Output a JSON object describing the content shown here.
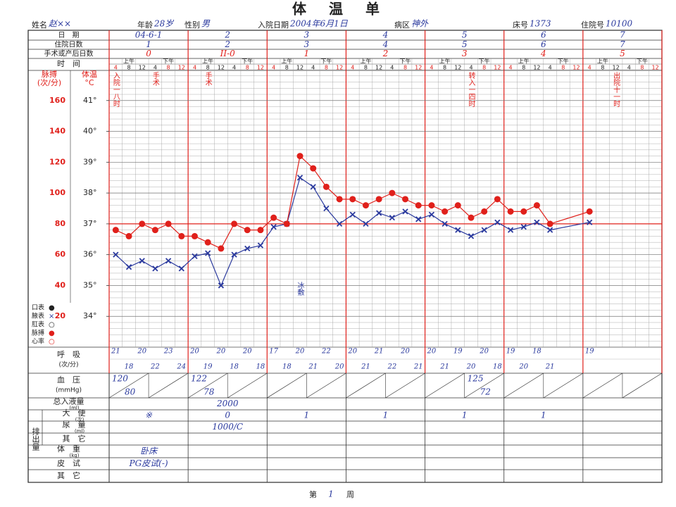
{
  "title": "体　温　单",
  "info": [
    {
      "label": "姓名",
      "value": "赵××"
    },
    {
      "label": "年龄",
      "value": "28岁"
    },
    {
      "label": "性别",
      "value": "男"
    },
    {
      "label": "入院日期",
      "value": "2004年6月1日"
    },
    {
      "label": "病区",
      "value": "神外"
    },
    {
      "label": "床号",
      "value": "1373"
    },
    {
      "label": "住院号",
      "value": "10100"
    }
  ],
  "day_rows": [
    {
      "label": "日　期",
      "values": [
        "04-6-1",
        "2",
        "3",
        "4",
        "5",
        "6",
        "7"
      ]
    },
    {
      "label": "住院日数",
      "values": [
        "1",
        "2",
        "3",
        "4",
        "5",
        "6",
        "7"
      ]
    },
    {
      "label": "手术或产后日数",
      "values": [
        "0",
        "II-0",
        "1",
        "2",
        "3",
        "4",
        "5"
      ]
    }
  ],
  "time_row": {
    "label": "时　间",
    "periods": [
      "上午",
      "下午"
    ]
  },
  "chart_data": {
    "type": "line",
    "ylabel": [
      "脉搏",
      "(次/分)"
    ],
    "y2label": [
      "体温",
      "°C"
    ],
    "categories": [
      4,
      8,
      12,
      4,
      8,
      12,
      4,
      8,
      12,
      4,
      8,
      12,
      4,
      8,
      12,
      4,
      8,
      12,
      4,
      8,
      12,
      4,
      8,
      12,
      4,
      8,
      12,
      4,
      8,
      12,
      4,
      8,
      12,
      4,
      8,
      12,
      4,
      8,
      12,
      4,
      8,
      12
    ],
    "x": [
      0,
      1,
      2,
      3,
      4,
      5,
      6,
      7,
      8,
      9,
      10,
      11,
      12,
      13,
      14,
      15,
      16,
      17,
      18,
      19,
      20,
      21,
      22,
      23,
      24,
      25,
      26,
      27,
      28,
      29,
      30,
      31,
      32,
      33,
      36
    ],
    "ylim": [
      0,
      180
    ],
    "yticks": [
      20,
      40,
      60,
      80,
      100,
      120,
      140,
      160
    ],
    "y2lim": [
      33,
      42
    ],
    "y2ticks": [
      {
        "value": 34,
        "label": "34°"
      },
      {
        "value": 35,
        "label": "35°"
      },
      {
        "value": 36,
        "label": "36°"
      },
      {
        "value": 37,
        "label": "37°"
      },
      {
        "value": 38,
        "label": "38°"
      },
      {
        "value": 39,
        "label": "39°"
      },
      {
        "value": 40,
        "label": "40°"
      },
      {
        "value": 41,
        "label": "41°"
      }
    ],
    "reference_line": {
      "value": 37,
      "axis": "y2",
      "color": "#e0201b"
    },
    "series": [
      {
        "name": "腋表",
        "symbol": "×",
        "color": "#2b3a9e",
        "axis": "y2",
        "values": [
          36.0,
          35.6,
          35.8,
          35.55,
          35.8,
          35.55,
          35.95,
          36.05,
          35.0,
          36.0,
          36.2,
          36.3,
          36.9,
          37.0,
          38.5,
          38.2,
          37.5,
          37.0,
          37.3,
          37.0,
          37.35,
          37.2,
          37.4,
          37.15,
          37.3,
          37.0,
          36.8,
          36.6,
          36.8,
          37.05,
          36.8,
          36.9,
          37.05,
          36.8,
          37.05
        ]
      },
      {
        "name": "脉搏",
        "symbol": "●",
        "color": "#e0201b",
        "values": [
          76,
          72,
          80,
          76,
          80,
          72,
          72,
          68,
          64,
          80,
          76,
          76,
          84,
          80,
          124,
          116,
          104,
          96,
          96,
          92,
          96,
          100,
          96,
          92,
          92,
          88,
          92,
          84,
          88,
          96,
          88,
          88,
          92,
          80,
          88
        ]
      }
    ],
    "legend_extra": [
      {
        "name": "口表",
        "symbol": "●",
        "color": "#222222"
      },
      {
        "name": "肛表",
        "symbol": "○",
        "color": "#222222"
      },
      {
        "name": "心率",
        "symbol": "○",
        "color": "#e0201b"
      }
    ],
    "annotations": [
      {
        "text": "入院一八时",
        "color": "#e0201b"
      },
      {
        "text": "手术",
        "color": "#e0201b"
      },
      {
        "text": "手术",
        "color": "#e0201b"
      },
      {
        "text": "转入一四时",
        "color": "#e0201b"
      },
      {
        "text": "出院十一时",
        "color": "#e0201b"
      },
      {
        "text": "冰敷",
        "color": "#2b3a9e"
      }
    ]
  },
  "respiration": {
    "label": "呼　吸",
    "unit": "(次/分)",
    "values": [
      21,
      18,
      20,
      22,
      23,
      24,
      20,
      19,
      20,
      18,
      20,
      18,
      17,
      18,
      20,
      21,
      22,
      20,
      20,
      21,
      21,
      22,
      20,
      21,
      20,
      21,
      19,
      20,
      20,
      18,
      19,
      20,
      18,
      21,
      null,
      null,
      19,
      null,
      null,
      null,
      null,
      null
    ]
  },
  "blood_pressure": {
    "label": "血　压",
    "unit": "(mmHg)",
    "values": [
      [
        120,
        80
      ],
      null,
      [
        122,
        78
      ],
      null,
      null,
      null,
      null,
      null,
      null,
      [
        125,
        72
      ],
      null,
      null,
      null,
      null
    ]
  },
  "intake": {
    "label": "总入液量",
    "unit": "(ml)",
    "values": [
      null,
      "2000",
      null,
      null,
      null,
      null,
      null
    ]
  },
  "output": {
    "label": "排出量",
    "rows": [
      {
        "label": "大　便",
        "unit": "(次)",
        "values": [
          "※",
          "0",
          "1",
          "1",
          "1",
          "1",
          null
        ]
      },
      {
        "label": "尿　量",
        "unit": "(ml)",
        "values": [
          null,
          "1000/C",
          null,
          null,
          null,
          null,
          null
        ]
      },
      {
        "label": "其　它"
      }
    ]
  },
  "weight": {
    "label": "体　重",
    "unit": "(kg)",
    "values": [
      "卧床",
      null,
      null,
      null,
      null,
      null,
      null
    ]
  },
  "skin_test": {
    "label": "皮　试",
    "values": [
      "PG皮试(-)",
      null,
      null,
      null,
      null,
      null,
      null
    ]
  },
  "other": {
    "label": "其　它"
  },
  "footer": {
    "prefix": "第",
    "week": "1",
    "suffix": "周"
  }
}
